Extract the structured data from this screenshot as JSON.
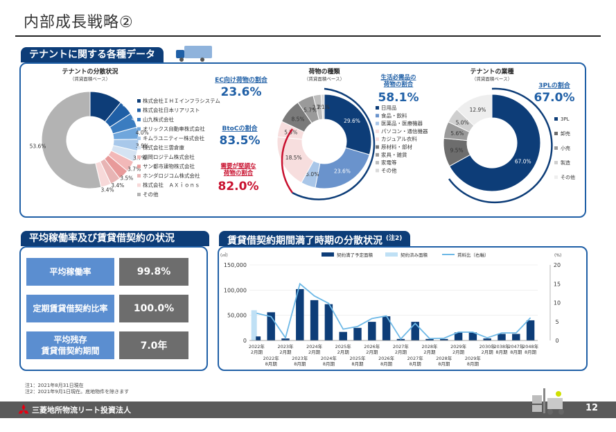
{
  "page_title": "内部成長戦略②",
  "section1_title": "テナントに関する各種データ",
  "section2_title": "平均稼働率及び賃貸借契約の状況",
  "section3_title": "賃貸借契約期間満了時期の分散状況",
  "section3_note_mark": "(注2)",
  "colors": {
    "navy": "#0d3d78",
    "blue": "#1f5fa6",
    "red": "#c8102e",
    "gray": "#6d6d6d",
    "label_blue": "#5b8ed0"
  },
  "stats": [
    {
      "label": "平均稼働率",
      "value": "99.8%"
    },
    {
      "label": "定期賃貸借契約比率",
      "value": "100.0%"
    },
    {
      "label": "平均残存\n賃貸借契約期間",
      "value": "7.0年"
    }
  ],
  "callouts": {
    "ec_label": "EC向け荷物の割合",
    "ec_value": "23.6%",
    "btoc_label": "BtoCの割合",
    "btoc_value": "83.5%",
    "stable_label": "需要が堅調な\n荷物の割合",
    "stable_value": "82.0%",
    "daily_label": "生活必需品の\n荷物の割合",
    "daily_value": "58.1%",
    "threepl_label": "3PLの割合",
    "threepl_value": "67.0%"
  },
  "footnotes": [
    "注1：2021年8月31日現在",
    "注2：2021年9月1日現在。底地物件を除きます"
  ],
  "footer": {
    "company": "三菱地所物流リート投資法人",
    "page_number": "12"
  },
  "chart_data": [
    {
      "type": "pie",
      "title": "テナントの分散状況",
      "subtitle": "（賃貸面積ベース）",
      "labels": [
        "株式会社ＩＨＩインフラシステム",
        "株式会社日本リアリスト",
        "山九株式会社",
        "オリックス自動車株式会社",
        "キムラユニティー株式会社",
        "株式会社三雲倉庫",
        "福岡ロジテム株式会社",
        "サン都市建物株式会社",
        "ホンダロジコム株式会社",
        "株式会社　ＡＸｉｏｎｓ",
        "その他"
      ],
      "values": [
        10.9,
        4.9,
        4.9,
        4.0,
        3.9,
        3.7,
        3.7,
        3.5,
        3.4,
        3.4,
        53.6
      ],
      "value_labels": [
        "10.9%",
        "4.9%",
        "4.9%",
        "4.0%",
        "3.9%",
        "3.7%",
        "3.7%",
        "3.5%",
        "3.4%",
        "3.4%",
        "53.6%"
      ],
      "colors": [
        "#0d3d78",
        "#1f5fa6",
        "#3a7cc0",
        "#6fa6dc",
        "#a8c8ea",
        "#d5e3f2",
        "#f2b8b8",
        "#e89a9a",
        "#e8b4b4",
        "#f7d9d9",
        "#b3b3b3"
      ]
    },
    {
      "type": "pie",
      "title": "荷物の種類",
      "subtitle": "（賃貸面積ベース）",
      "labels": [
        "日用品",
        "食品・飲料",
        "医薬品・医療機器",
        "パソコン・通信機器",
        "カジュアル衣料",
        "原材料・部材",
        "家具・雑貨",
        "家電等",
        "その他"
      ],
      "values": [
        29.6,
        23.6,
        5.0,
        18.5,
        5.5,
        8.5,
        5.7,
        2.7,
        1.1
      ],
      "value_labels": [
        "29.6%",
        "23.6%",
        "5.0%",
        "18.5%",
        "5.5%",
        "8.5%",
        "5.7%",
        "2.7%",
        "1.1%"
      ],
      "colors": [
        "#0d3d78",
        "#6a93cc",
        "#a9c6e8",
        "#f7dede",
        "#f7dede",
        "#7a7a7a",
        "#9a9a9a",
        "#bdbdbd",
        "#d9d9d9"
      ]
    },
    {
      "type": "pie",
      "title": "テナントの業種",
      "subtitle": "（賃貸面積ベース）",
      "labels": [
        "3PL",
        "卸売",
        "小売",
        "製造",
        "その他"
      ],
      "values": [
        67.0,
        9.5,
        5.6,
        5.0,
        12.9
      ],
      "value_labels": [
        "67.0%",
        "9.5%",
        "5.6%",
        "5.0%",
        "12.9%"
      ],
      "colors": [
        "#0d3d78",
        "#6d6d6d",
        "#9a9a9a",
        "#cfcfcf",
        "#eeeeee"
      ]
    },
    {
      "type": "bar",
      "title": "",
      "ylabel_left": "(㎡)",
      "ylabel_right": "(%)",
      "legend": [
        "契約満了予定面積",
        "契約済み面積",
        "賃料比（右軸）"
      ],
      "categories": [
        "2022年2月期",
        "2022年8月期",
        "2023年2月期",
        "2023年8月期",
        "2024年2月期",
        "2024年8月期",
        "2025年2月期",
        "2025年8月期",
        "2026年2月期",
        "2026年8月期",
        "2027年2月期",
        "2027年8月期",
        "2028年2月期",
        "2028年8月期",
        "2029年2月期",
        "2029年8月期",
        "2030年2月期",
        "2038年8月期",
        "2047年8月期",
        "2048年8月期"
      ],
      "series": [
        {
          "name": "契約満了予定面積",
          "values": [
            8000,
            56000,
            4000,
            102000,
            80000,
            72000,
            17000,
            25000,
            37000,
            48000,
            3000,
            37000,
            3000,
            3000,
            16000,
            16000,
            4000,
            13000,
            13000,
            40000
          ]
        },
        {
          "name": "契約済み面積",
          "values": [
            60000,
            0,
            0,
            0,
            0,
            0,
            0,
            0,
            0,
            0,
            0,
            0,
            0,
            0,
            0,
            0,
            0,
            0,
            0,
            0
          ]
        },
        {
          "name": "賃料比（右軸）",
          "axis": "right",
          "values": [
            7.2,
            6.3,
            0.7,
            15.0,
            11.8,
            9.8,
            3.0,
            3.7,
            5.8,
            6.5,
            0.4,
            4.5,
            0.5,
            0.6,
            2.2,
            2.2,
            0.7,
            2.0,
            2.0,
            6.0
          ]
        }
      ],
      "yticks_left": [
        "0",
        "50,000",
        "100,000",
        "150,000"
      ],
      "ylim_left": [
        0,
        150000
      ],
      "yticks_right": [
        "0",
        "5",
        "10",
        "15",
        "20"
      ],
      "ylim_right": [
        0,
        20
      ],
      "xtick_top": [
        [
          "2022年",
          "2月期"
        ],
        [
          "2023年",
          "2月期"
        ],
        [
          "2024年",
          "2月期"
        ],
        [
          "2025年",
          "2月期"
        ],
        [
          "2026年",
          "2月期"
        ],
        [
          "2027年",
          "2月期"
        ],
        [
          "2028年",
          "2月期"
        ],
        [
          "2029年",
          "2月期"
        ],
        [
          "2030年",
          "2月期"
        ],
        [
          "2038年",
          "8月期"
        ],
        [
          "2047年",
          "8月期"
        ],
        [
          "2048年",
          "8月期"
        ]
      ],
      "xtick_bottom": [
        [
          "2022年",
          "8月期"
        ],
        [
          "2023年",
          "8月期"
        ],
        [
          "2024年",
          "8月期"
        ],
        [
          "2025年",
          "8月期"
        ],
        [
          "2026年",
          "8月期"
        ],
        [
          "2027年",
          "8月期"
        ],
        [
          "2028年",
          "8月期"
        ],
        [
          "2029年",
          "8月期"
        ]
      ]
    }
  ]
}
